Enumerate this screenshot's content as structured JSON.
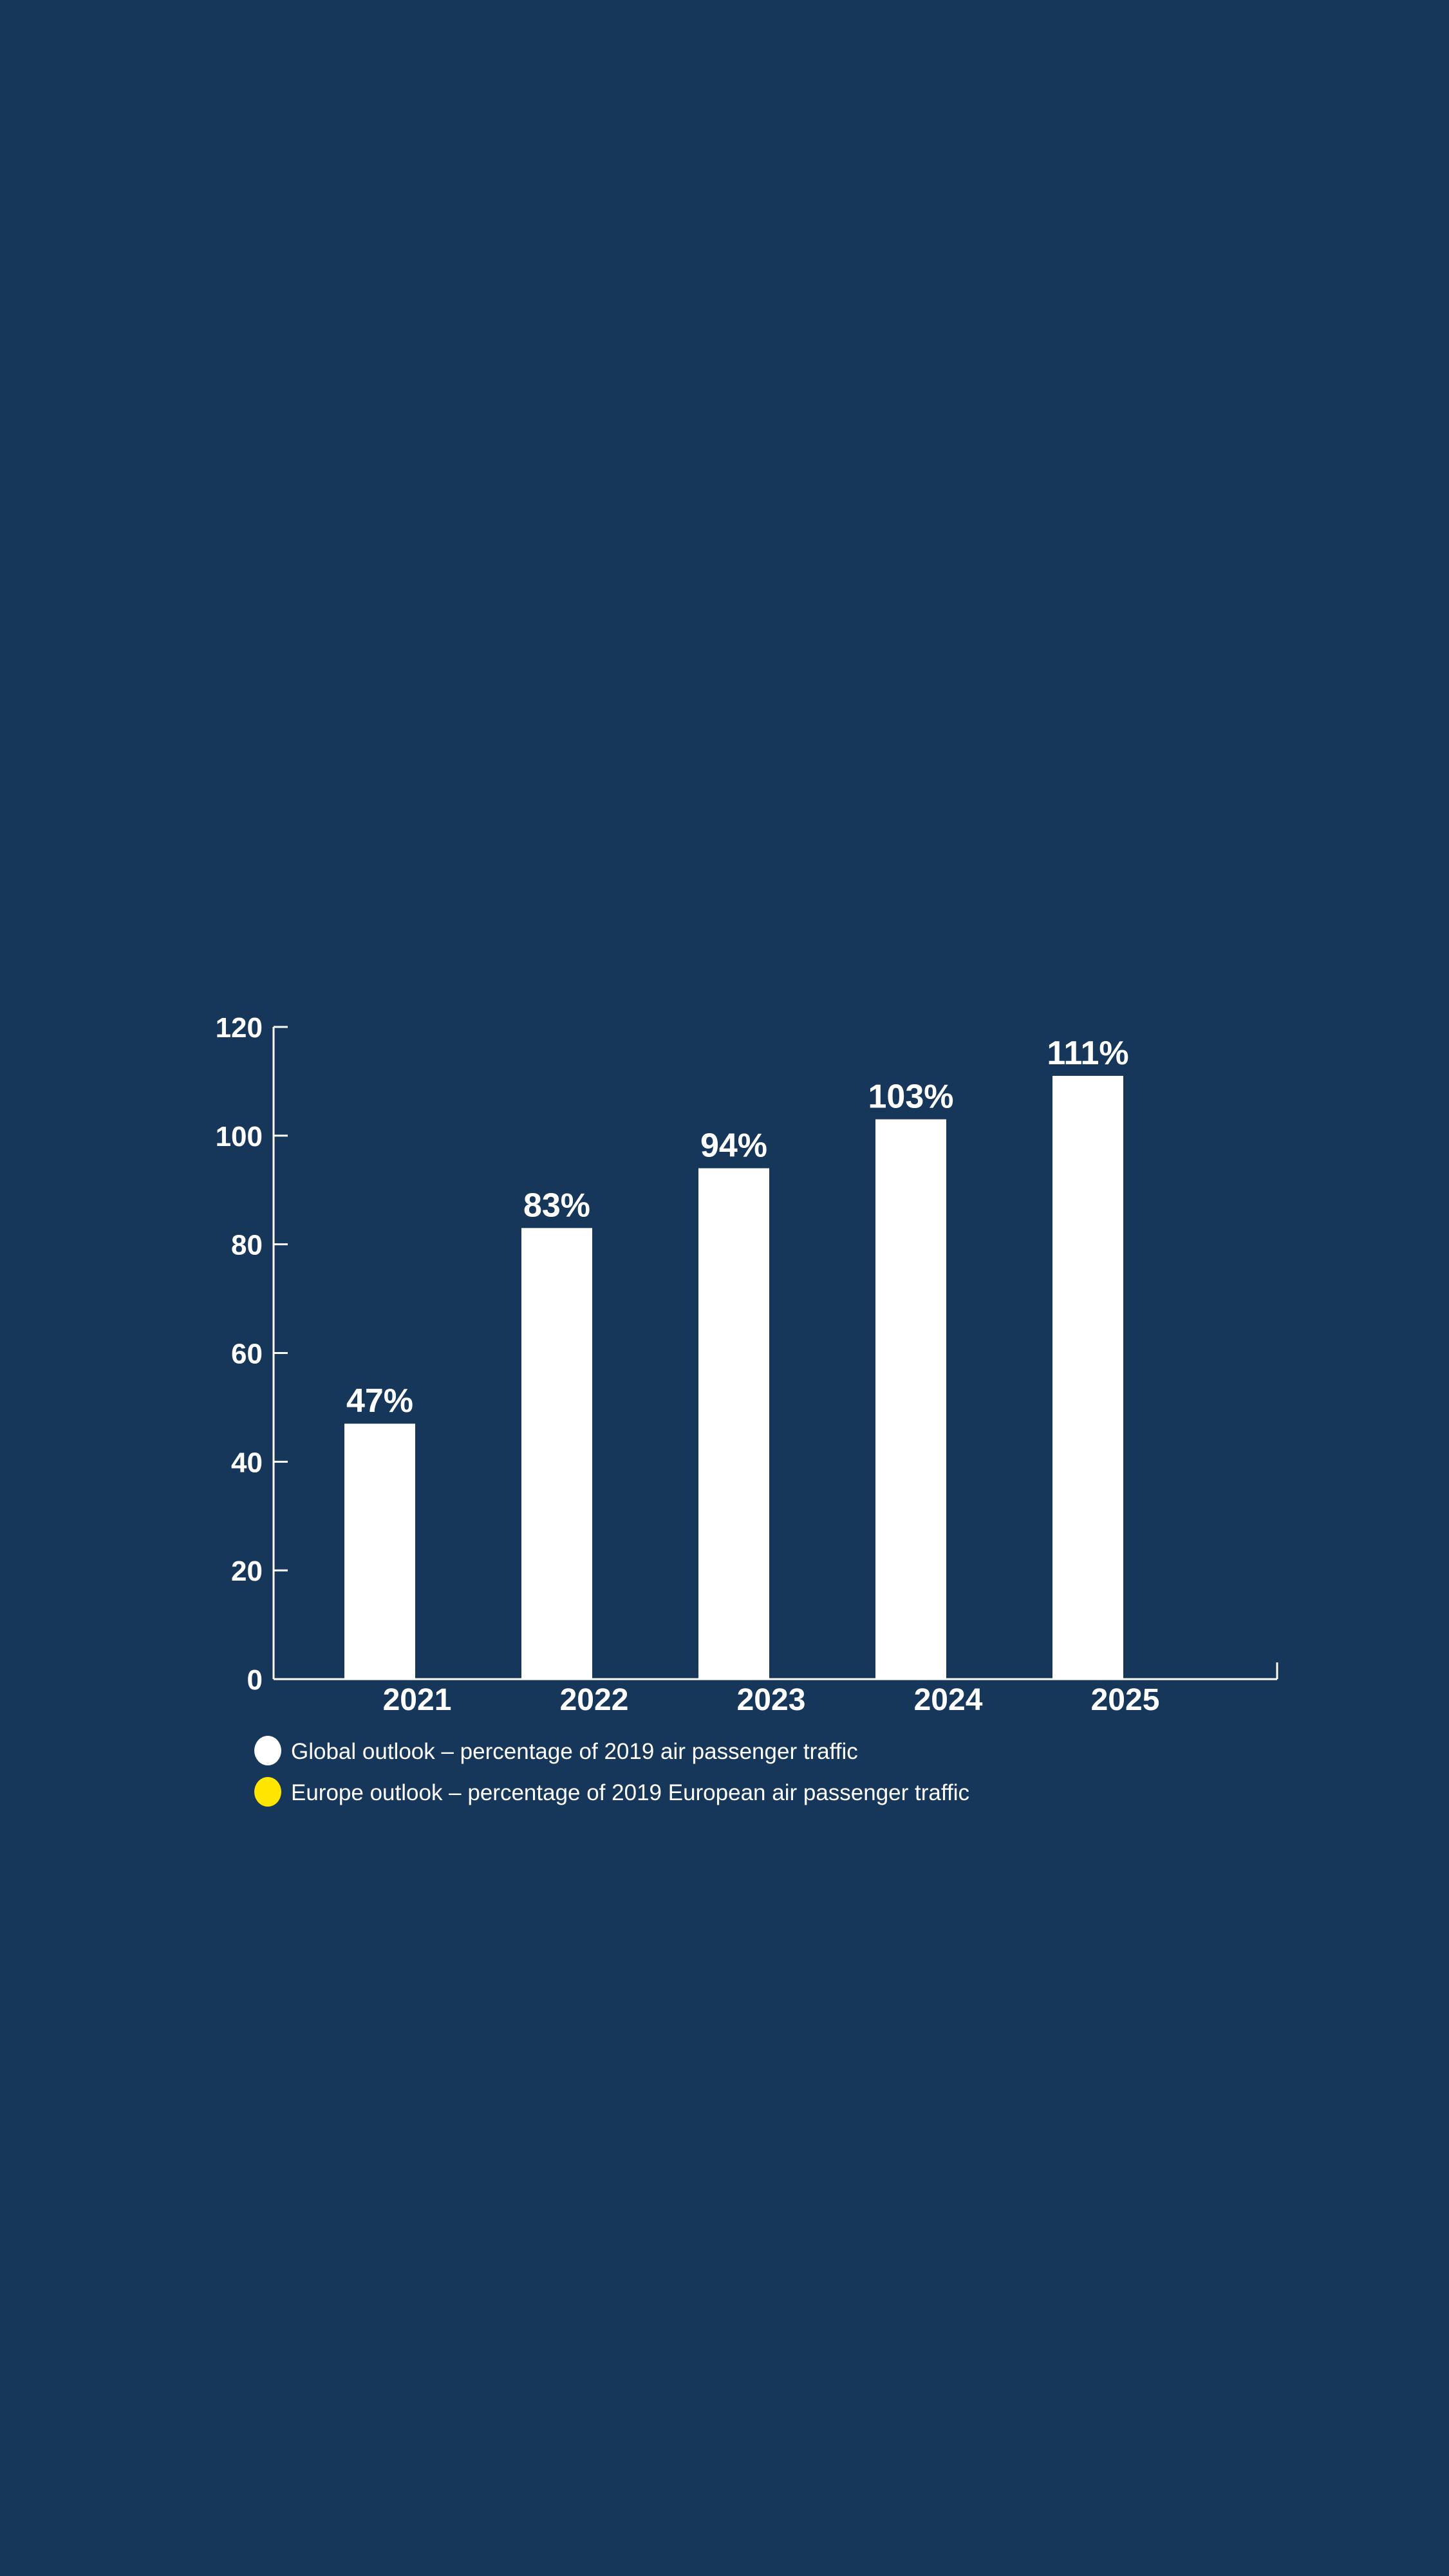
{
  "chart_data": {
    "type": "bar",
    "title": "",
    "xlabel": "",
    "ylabel": "",
    "categories": [
      "2021",
      "2022",
      "2023",
      "2024",
      "2025"
    ],
    "values": [
      47,
      83,
      94,
      103,
      111
    ],
    "data_labels": [
      "47%",
      "83%",
      "94%",
      "103%",
      "111%"
    ],
    "ylim": [
      0,
      120
    ],
    "yticks": [
      0,
      20,
      40,
      60,
      80,
      100,
      120
    ],
    "grid": false,
    "bar_color": "#ffffff",
    "legend_placement": "bottom-left",
    "legend": [
      {
        "label": "Global outlook – percentage of 2019 air passenger traffic",
        "color": "#ffffff"
      },
      {
        "label": "Europe outlook – percentage of 2019 European air passenger traffic",
        "color": "#ffe500"
      }
    ]
  },
  "colors": {
    "background": "#17375a",
    "axis": "#ffffff"
  }
}
